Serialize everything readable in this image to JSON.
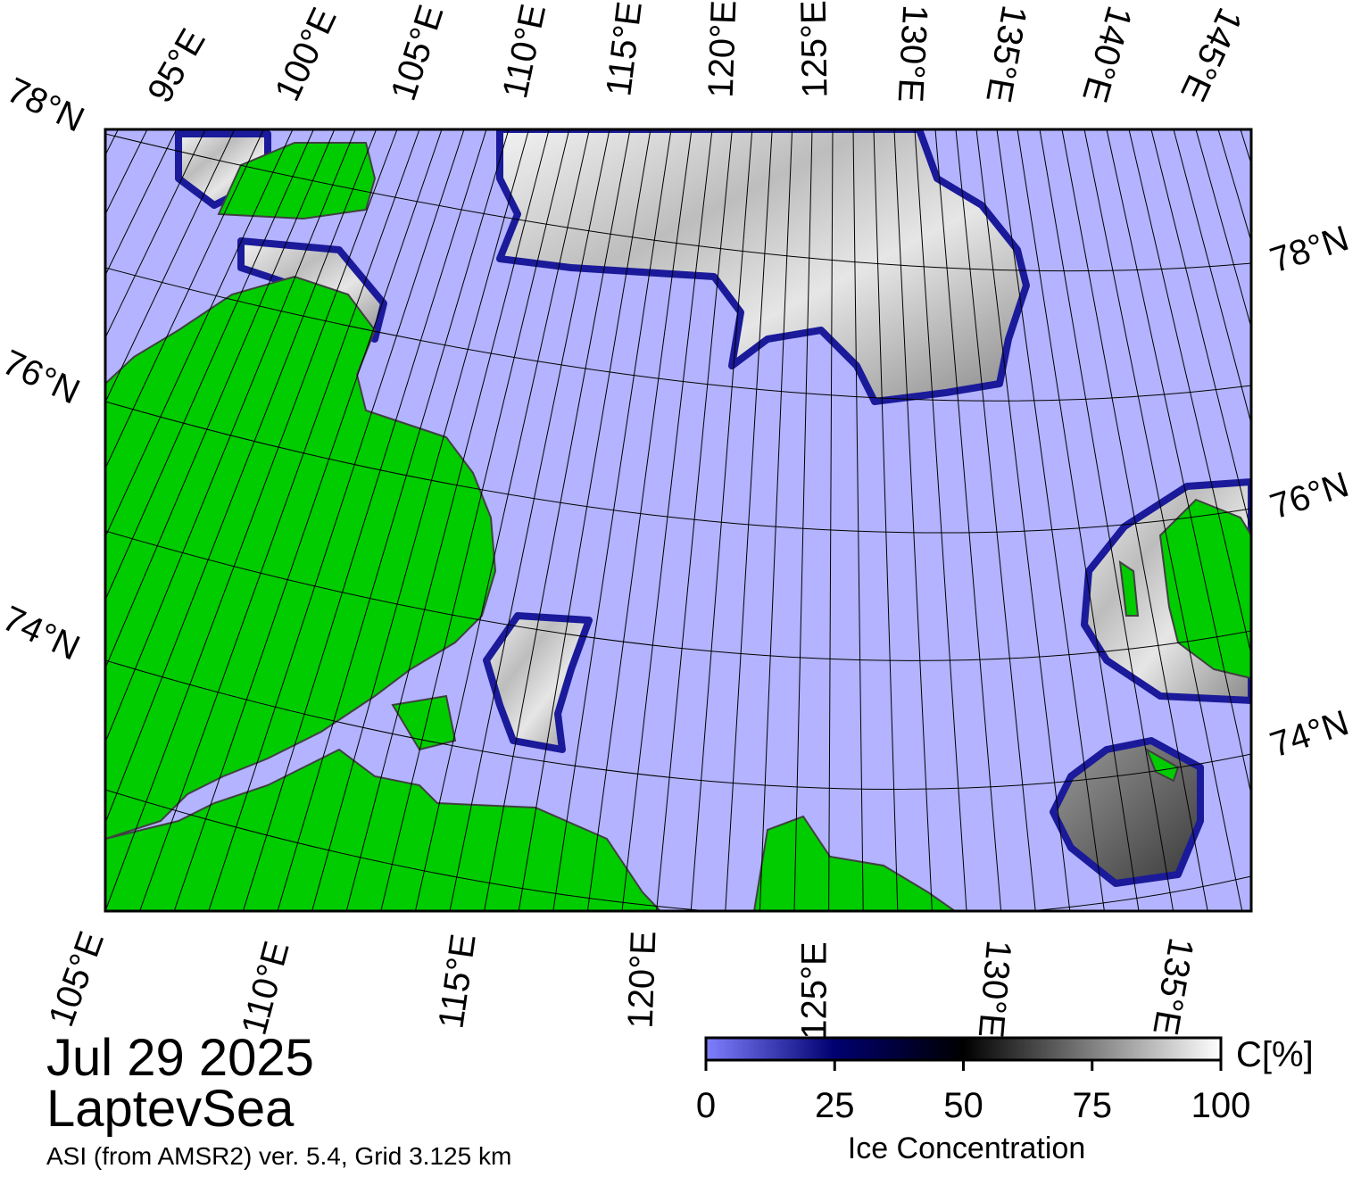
{
  "map": {
    "top_labels": [
      "95°E",
      "100°E",
      "105°E",
      "110°E",
      "115°E",
      "120°E",
      "125°E",
      "130°E",
      "135°E",
      "140°E",
      "145°E"
    ],
    "left_labels": [
      "78°N",
      "76°N",
      "74°N"
    ],
    "right_labels": [
      "78°N",
      "76°N",
      "74°N"
    ],
    "bottom_labels": [
      "105°E",
      "110°E",
      "115°E",
      "120°E",
      "125°E",
      "130°E",
      "135°E"
    ]
  },
  "date": "Jul 29 2025",
  "region": "LaptevSea",
  "source": "ASI (from AMSR2) ver. 5.4,  Grid 3.125 km",
  "colorbar": {
    "label": "Ice Concentration",
    "unit": "C[%]",
    "range": [
      0,
      100
    ],
    "ticks": [
      0,
      25,
      50,
      75,
      100
    ]
  }
}
